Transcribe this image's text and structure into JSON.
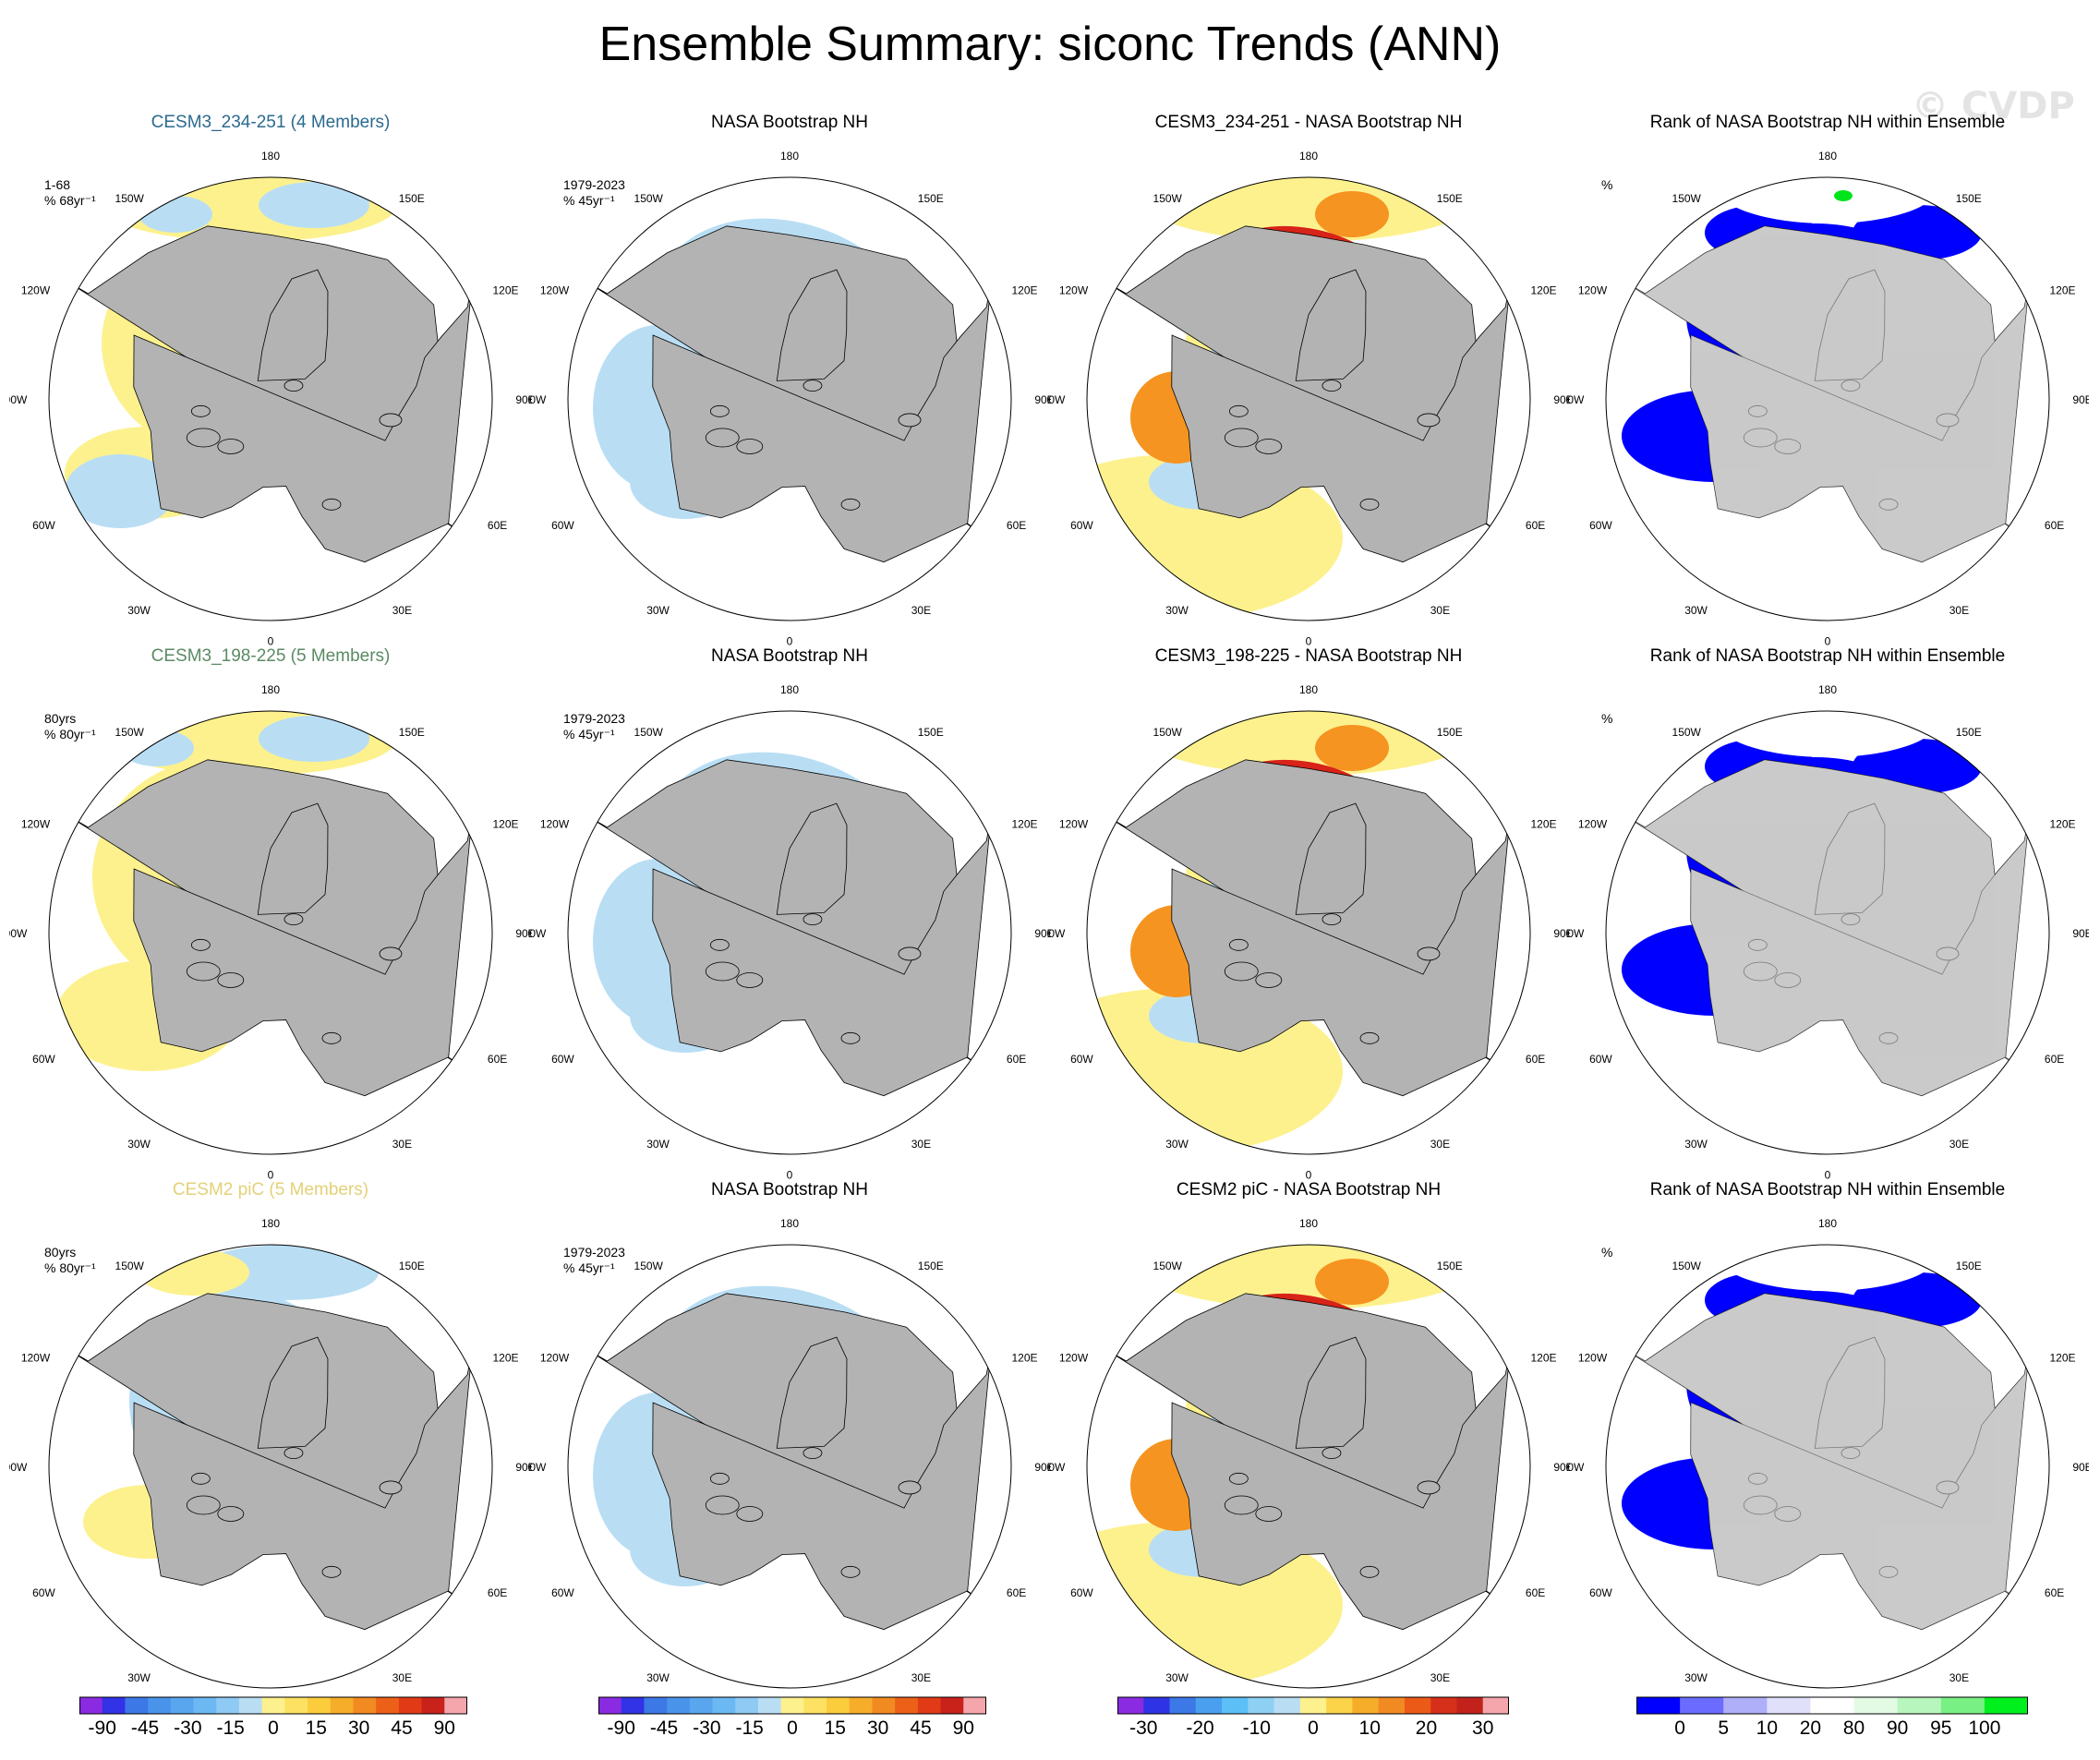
{
  "title": "Ensemble Summary: siconc Trends (ANN)",
  "watermark": "© CVDP",
  "colors": {
    "land": "#b3b3b3",
    "ocean": "#ffffff",
    "rank_land": "#dcdcdc",
    "pale_yellow": "#fdf18e",
    "pale_blue": "#b9def4",
    "mid_blue": "#5fb4ef",
    "deep_blue": "#1a5de8",
    "orange": "#f59420",
    "red": "#d72318",
    "pink": "#f5a6ad",
    "rank_blue": "#0000ff",
    "rank_green": "#00e41b"
  },
  "compass": {
    "top": "180",
    "bottom": "0",
    "tl1": "150W",
    "tl2": "120W",
    "ml": "90W",
    "bl1": "60W",
    "bl2": "30W",
    "tr1": "150E",
    "tr2": "120E",
    "mr": "90E",
    "br1": "60E",
    "br2": "30E"
  },
  "rows": [
    {
      "model": {
        "title": "CESM3_234-251 (4 Members)",
        "color": "#2b6a8f",
        "info": "1-68\n% 68yr⁻¹",
        "pattern": "model_a"
      },
      "obs": {
        "title": "NASA Bootstrap NH",
        "info": "1979-2023\n% 45yr⁻¹",
        "pattern": "obs"
      },
      "diff": {
        "title": "CESM3_234-251 - NASA Bootstrap NH",
        "pattern": "diff_a"
      },
      "rank": {
        "title": "Rank of NASA Bootstrap NH within Ensemble",
        "info": "%",
        "pattern": "rank_a"
      }
    },
    {
      "model": {
        "title": "CESM3_198-225 (5 Members)",
        "color": "#5a8a63",
        "info": "80yrs\n% 80yr⁻¹",
        "pattern": "model_b"
      },
      "obs": {
        "title": "NASA Bootstrap NH",
        "info": "1979-2023\n% 45yr⁻¹",
        "pattern": "obs"
      },
      "diff": {
        "title": "CESM3_198-225 - NASA Bootstrap NH",
        "pattern": "diff_b"
      },
      "rank": {
        "title": "Rank of NASA Bootstrap NH within Ensemble",
        "info": "%",
        "pattern": "rank_b"
      }
    },
    {
      "model": {
        "title": "CESM2 piC (5 Members)",
        "color": "#e3d177",
        "info": "80yrs\n% 80yr⁻¹",
        "pattern": "model_c"
      },
      "obs": {
        "title": "NASA Bootstrap NH",
        "info": "1979-2023\n% 45yr⁻¹",
        "pattern": "obs"
      },
      "diff": {
        "title": "CESM2 piC - NASA Bootstrap NH",
        "pattern": "diff_c"
      },
      "rank": {
        "title": "Rank of NASA Bootstrap NH within Ensemble",
        "info": "%",
        "pattern": "rank_c"
      }
    }
  ],
  "chart_data": [
    {
      "type": "colorbar",
      "name": "trend_scale",
      "labels": [
        "-90",
        "-45",
        "-30",
        "-15",
        "0",
        "15",
        "30",
        "45",
        "90"
      ],
      "colors": [
        "#8a2be2",
        "#3232e6",
        "#3c78e6",
        "#4a93ea",
        "#5aa6ee",
        "#6cb8f2",
        "#8ecaf4",
        "#b9def4",
        "#fdf18e",
        "#fde163",
        "#fbcc3b",
        "#f6ad2a",
        "#f28a22",
        "#ec6018",
        "#e03b16",
        "#c8221b",
        "#f5a6ad"
      ]
    },
    {
      "type": "colorbar",
      "name": "trend_scale_obs",
      "labels": [
        "-90",
        "-45",
        "-30",
        "-15",
        "0",
        "15",
        "30",
        "45",
        "90"
      ],
      "colors": [
        "#8a2be2",
        "#3232e6",
        "#3c78e6",
        "#4a93ea",
        "#5aa6ee",
        "#6cb8f2",
        "#8ecaf4",
        "#b9def4",
        "#fdf18e",
        "#fde163",
        "#fbcc3b",
        "#f6ad2a",
        "#f28a22",
        "#ec6018",
        "#e03b16",
        "#c8221b",
        "#f5a6ad"
      ]
    },
    {
      "type": "colorbar",
      "name": "difference_scale",
      "labels": [
        "-30",
        "-20",
        "-10",
        "0",
        "10",
        "20",
        "30"
      ],
      "colors": [
        "#8a2be2",
        "#2f33e6",
        "#3c78e6",
        "#4aa0ee",
        "#5cc0f6",
        "#8ed0f4",
        "#b9def4",
        "#fdf18e",
        "#fbd44a",
        "#f6ad2a",
        "#f28a22",
        "#ec5a18",
        "#d7301a",
        "#c3221c",
        "#f5a6ad"
      ]
    },
    {
      "type": "colorbar",
      "name": "rank_scale",
      "labels": [
        "0",
        "5",
        "10",
        "20",
        "80",
        "90",
        "95",
        "100"
      ],
      "colors": [
        "#0000ff",
        "#6b6bff",
        "#aeaef9",
        "#e0e0fb",
        "#ffffff",
        "#e3fbe5",
        "#b7f7bd",
        "#79f083",
        "#00f01d"
      ]
    }
  ]
}
